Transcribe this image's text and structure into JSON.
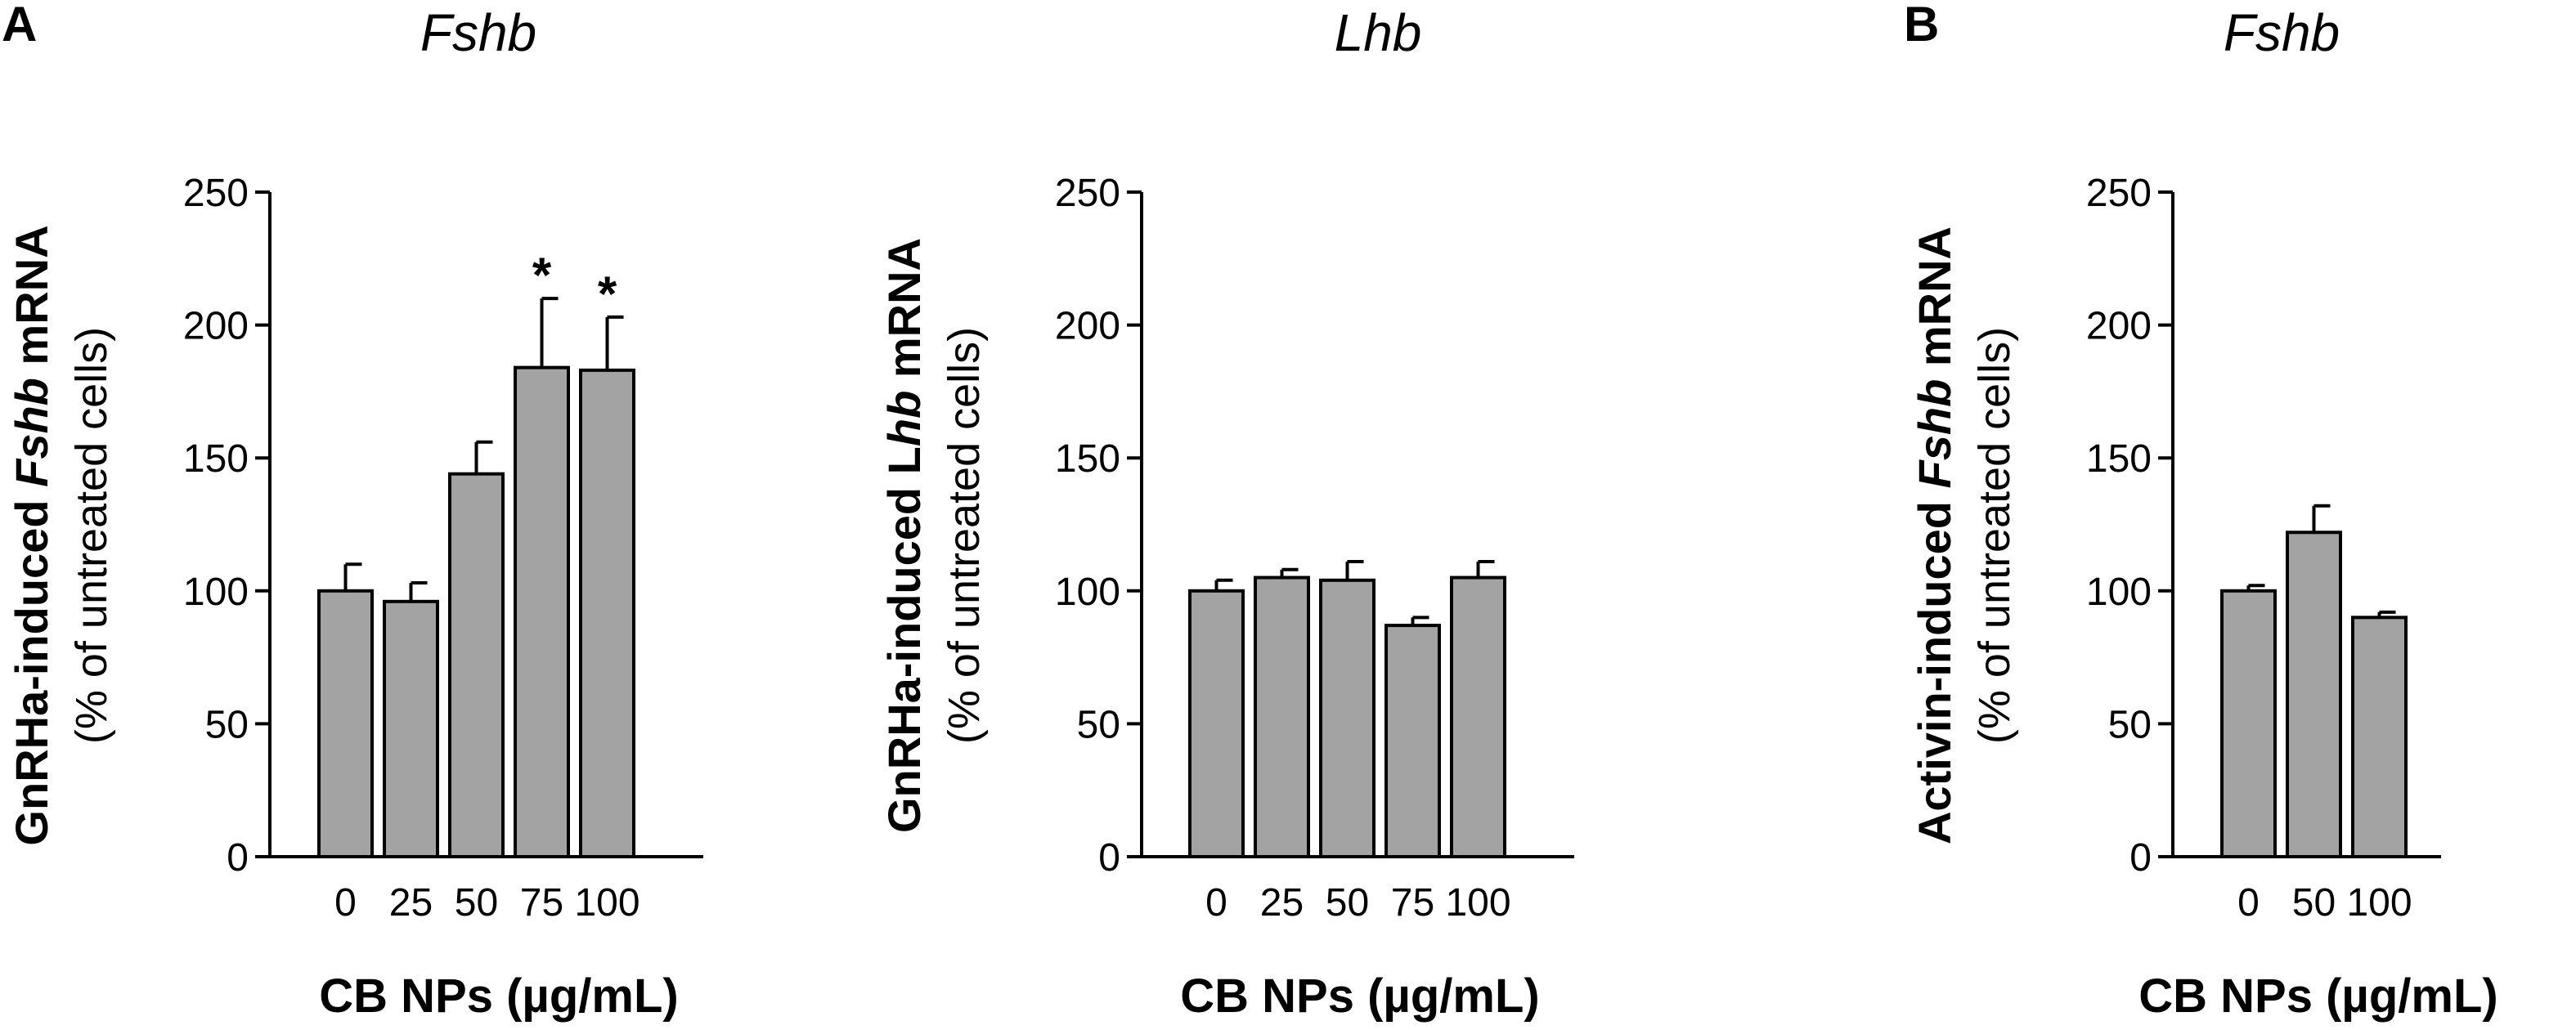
{
  "chart_data": [
    {
      "type": "bar",
      "panel": "A",
      "title": "Fshb",
      "ylabel_parts": [
        "GnRHa-induced ",
        "Fshb",
        " mRNA"
      ],
      "ylabel_sub": "(% of untreated cells)",
      "xlabel": "CB NPs (µg/mL)",
      "ylim": [
        0,
        250
      ],
      "yticks": [
        0,
        50,
        100,
        150,
        200,
        250
      ],
      "categories": [
        "0",
        "25",
        "50",
        "75",
        "100"
      ],
      "values": [
        100,
        96,
        144,
        184,
        183
      ],
      "errors": [
        10,
        7,
        12,
        26,
        20
      ],
      "significance": [
        "",
        "",
        "",
        "*",
        "*"
      ]
    },
    {
      "type": "bar",
      "panel": "",
      "title": "Lhb",
      "ylabel_parts": [
        "GnRHa-induced L",
        "hb",
        " mRNA"
      ],
      "ylabel_sub": "(% of untreated cells)",
      "xlabel": "CB NPs (µg/mL)",
      "ylim": [
        0,
        250
      ],
      "yticks": [
        0,
        50,
        100,
        150,
        200,
        250
      ],
      "categories": [
        "0",
        "25",
        "50",
        "75",
        "100"
      ],
      "values": [
        100,
        105,
        104,
        87,
        105
      ],
      "errors": [
        4,
        3,
        7,
        3,
        6
      ],
      "significance": [
        "",
        "",
        "",
        "",
        ""
      ]
    },
    {
      "type": "bar",
      "panel": "B",
      "title": "Fshb",
      "ylabel_parts": [
        "Activin-induced ",
        "Fshb",
        " mRNA"
      ],
      "ylabel_sub": "(% of untreated cells)",
      "xlabel": "CB NPs (µg/mL)",
      "ylim": [
        0,
        250
      ],
      "yticks": [
        0,
        50,
        100,
        150,
        200,
        250
      ],
      "categories": [
        "0",
        "50",
        "100"
      ],
      "values": [
        100,
        122,
        90
      ],
      "errors": [
        2,
        10,
        2
      ],
      "significance": [
        "",
        "",
        ""
      ]
    }
  ]
}
